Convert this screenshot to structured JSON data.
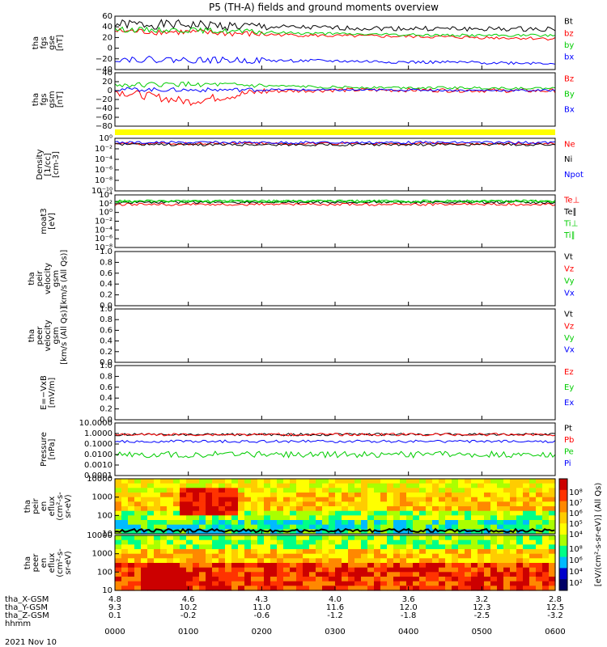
{
  "chart_data": {
    "title": "P5 (TH-A) fields and ground moments overview",
    "date": "2021 Nov 10",
    "x_ticks_hhmm": [
      "0000",
      "0100",
      "0200",
      "0300",
      "0400",
      "0500",
      "0600"
    ],
    "ephemeris": [
      {
        "label": "tha_X-GSM",
        "values": [
          "4.8",
          "4.6",
          "4.3",
          "4.0",
          "3.6",
          "3.2",
          "2.8"
        ]
      },
      {
        "label": "tha_Y-GSM",
        "values": [
          "9.3",
          "10.2",
          "11.0",
          "11.6",
          "12.0",
          "12.3",
          "12.5"
        ]
      },
      {
        "label": "tha_Z-GSM",
        "values": [
          "0.1",
          "-0.2",
          "-0.6",
          "-1.2",
          "-1.8",
          "-2.5",
          "-3.2"
        ]
      },
      {
        "label": "hhmm",
        "values": []
      }
    ],
    "panels": [
      {
        "id": "fgs_gse",
        "type": "line",
        "ylabel": [
          "tha",
          "fgs",
          "gse",
          "[nT]"
        ],
        "ylim": [
          -40,
          60
        ],
        "yticks": [
          "60",
          "40",
          "20",
          "0",
          "−20",
          "−40"
        ],
        "series": [
          {
            "name": "Bt",
            "color": "#000000",
            "base": [
              45,
              44,
              40,
              38,
              37,
              36,
              36
            ],
            "noise": 9
          },
          {
            "name": "bz",
            "color": "#ff0000",
            "base": [
              32,
              30,
              26,
              23,
              22,
              20,
              18
            ],
            "noise": 6
          },
          {
            "name": "by",
            "color": "#00cc00",
            "base": [
              35,
              34,
              30,
              27,
              25,
              24,
              24
            ],
            "noise": 5
          },
          {
            "name": "bx",
            "color": "#0000ff",
            "base": [
              -20,
              -22,
              -23,
              -24,
              -26,
              -27,
              -28
            ],
            "noise": 6
          }
        ]
      },
      {
        "id": "fgs_gsm",
        "type": "line",
        "ylabel": [
          "tha",
          "fgs",
          "gsm",
          "[nT]"
        ],
        "ylim": [
          -90,
          40
        ],
        "yticks": [
          "40",
          "20",
          "0",
          "−20",
          "−40",
          "−60",
          "−80"
        ],
        "series": [
          {
            "name": "Bz",
            "color": "#ff0000",
            "base": [
              -5,
              -30,
              -5,
              -2,
              -2,
              -3,
              -4
            ],
            "noise": 10
          },
          {
            "name": "By",
            "color": "#00cc00",
            "base": [
              10,
              12,
              8,
              5,
              4,
              3,
              2
            ],
            "noise": 6
          },
          {
            "name": "Bx",
            "color": "#0000ff",
            "base": [
              0,
              -2,
              -1,
              -2,
              -2,
              -3,
              -3
            ],
            "noise": 5
          }
        ]
      },
      {
        "id": "density",
        "type": "line",
        "ylabel": [
          "Density",
          "[1/cc]",
          "[cm-3]"
        ],
        "yticks": [
          "10⁰",
          "10⁻²",
          "10⁻⁴",
          "10⁻⁶",
          "10⁻⁸",
          "10⁻¹⁰"
        ],
        "series": [
          {
            "name": "Ne",
            "color": "#ff0000"
          },
          {
            "name": "Ni",
            "color": "#000000"
          },
          {
            "name": "Npot",
            "color": "#0000ff"
          }
        ]
      },
      {
        "id": "temperature",
        "type": "line",
        "ylabel": [
          "moat3",
          "[eV]"
        ],
        "yticks": [
          "10⁴",
          "10²",
          "10⁰",
          "10⁻²",
          "10⁻⁴",
          "10⁻⁶",
          "10⁻⁸"
        ],
        "series": [
          {
            "name": "Te⊥",
            "color": "#ff0000"
          },
          {
            "name": "Te∥",
            "color": "#000000"
          },
          {
            "name": "Ti⊥",
            "color": "#00cc00"
          },
          {
            "name": "Ti∥",
            "color": "#00cc00"
          }
        ]
      },
      {
        "id": "peir_velocity",
        "type": "empty",
        "ylabel": [
          "tha",
          "peir",
          "velocity",
          "gsm",
          "[km/s (All Qs)]"
        ],
        "yticks": [
          "1.0",
          "0.8",
          "0.6",
          "0.4",
          "0.2",
          "0.0"
        ],
        "series": [
          {
            "name": "Vt",
            "color": "#000000"
          },
          {
            "name": "Vz",
            "color": "#ff0000"
          },
          {
            "name": "Vy",
            "color": "#00cc00"
          },
          {
            "name": "Vx",
            "color": "#0000ff"
          }
        ]
      },
      {
        "id": "peer_velocity",
        "type": "empty",
        "ylabel": [
          "tha",
          "peer",
          "velocity",
          "gsm",
          "[km/s (All Qs)]"
        ],
        "yticks": [
          "1.0",
          "0.8",
          "0.6",
          "0.4",
          "0.2",
          "0.0"
        ],
        "series": [
          {
            "name": "Vt",
            "color": "#000000"
          },
          {
            "name": "Vz",
            "color": "#ff0000"
          },
          {
            "name": "Vy",
            "color": "#00cc00"
          },
          {
            "name": "Vx",
            "color": "#0000ff"
          }
        ]
      },
      {
        "id": "efield",
        "type": "empty",
        "ylabel": [
          "E=−VxB",
          "[mV/m]"
        ],
        "yticks": [
          "1.0",
          "0.8",
          "0.6",
          "0.4",
          "0.2",
          "0.0"
        ],
        "series": [
          {
            "name": "Ez",
            "color": "#ff0000"
          },
          {
            "name": "Ey",
            "color": "#00cc00"
          },
          {
            "name": "Ex",
            "color": "#0000ff"
          }
        ]
      },
      {
        "id": "pressure",
        "type": "line",
        "ylabel": [
          "Pressure",
          "[nPa]"
        ],
        "yticks": [
          "10.0000",
          "1.0000",
          "0.1000",
          "0.0100",
          "0.0010",
          "0.0001"
        ],
        "series": [
          {
            "name": "Pt",
            "color": "#000000"
          },
          {
            "name": "Pb",
            "color": "#ff0000"
          },
          {
            "name": "Pe",
            "color": "#00cc00"
          },
          {
            "name": "Pi",
            "color": "#0000ff"
          }
        ]
      },
      {
        "id": "peir_eflux",
        "type": "heatmap",
        "ylabel": [
          "tha",
          "peir",
          "en",
          "eflux",
          "(cm²-s-",
          "sr-eV)"
        ],
        "yticks": [
          "10000",
          "1000",
          "100",
          "10"
        ]
      },
      {
        "id": "peer_eflux",
        "type": "heatmap",
        "ylabel": [
          "tha",
          "peer",
          "en",
          "eflux",
          "(cm²-s-",
          "sr-eV)"
        ],
        "yticks": [
          "10000",
          "1000",
          "100",
          "10"
        ]
      }
    ],
    "colorbar": {
      "label": "[eV/(cm²-s-sr-eV)] (All Qs)",
      "ticks_top": [
        "10⁸",
        "10⁷",
        "10⁶",
        "10⁵",
        "10⁴"
      ],
      "ticks_bottom": [
        "10⁸",
        "10⁶",
        "10⁴",
        "10²"
      ]
    }
  }
}
